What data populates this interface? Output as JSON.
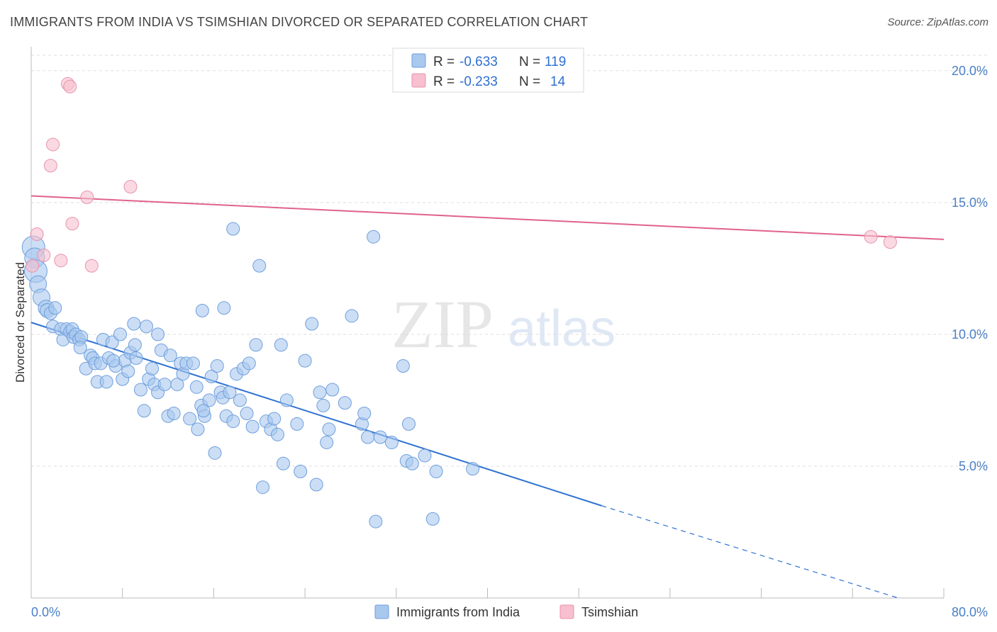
{
  "header": {
    "title": "IMMIGRANTS FROM INDIA VS TSIMSHIAN DIVORCED OR SEPARATED CORRELATION CHART",
    "source": "Source: ZipAtlas.com"
  },
  "watermark": {
    "zip": "ZIP",
    "atlas": "atlas"
  },
  "colors": {
    "india_fill": "#a9c8ee",
    "india_stroke": "#6f9fdc",
    "india_line": "#2f72d2",
    "tsim_fill": "#f7bfcf",
    "tsim_stroke": "#e893ad",
    "tsim_line": "#e0638a",
    "grid": "#dddddd",
    "tick_text": "#4a7fc6"
  },
  "legend": {
    "rows": [
      {
        "r_label": "R =",
        "r_value": "-0.633",
        "n_label": "N =",
        "n_value": "119"
      },
      {
        "r_label": "R =",
        "r_value": "-0.233",
        "n_label": "N =",
        "n_value": "14"
      }
    ]
  },
  "bottom_legend": {
    "india": "Immigrants from India",
    "tsim": "Tsimshian"
  },
  "chart_data": {
    "type": "scatter",
    "title": "IMMIGRANTS FROM INDIA VS TSIMSHIAN DIVORCED OR SEPARATED CORRELATION CHART",
    "ylabel": "Divorced or Separated",
    "xlim": [
      0,
      80
    ],
    "ylim": [
      0,
      20.8
    ],
    "x_tick_labels": [
      "0.0%",
      "80.0%"
    ],
    "y_ticks": [
      5,
      10,
      15,
      20
    ],
    "y_tick_labels": [
      "5.0%",
      "10.0%",
      "15.0%",
      "20.0%"
    ],
    "grid": true,
    "legend_position": "top-center",
    "series": [
      {
        "name": "Immigrants from India",
        "r": -0.633,
        "n": 119,
        "trend": {
          "x0": 0,
          "y0": 10.45,
          "x1": 50,
          "y1": 3.5,
          "dash_x1": 76,
          "dash_y1": 0
        },
        "points": [
          [
            0.2,
            13.3,
            16
          ],
          [
            0.3,
            12.9,
            14
          ],
          [
            0.4,
            12.4,
            16
          ],
          [
            0.6,
            11.9,
            12
          ],
          [
            0.9,
            11.4,
            12
          ],
          [
            1.3,
            11.0,
            11
          ],
          [
            1.4,
            10.9,
            10
          ],
          [
            1.7,
            10.8,
            9
          ],
          [
            2.1,
            11.0,
            9
          ],
          [
            1.9,
            10.3,
            9
          ],
          [
            2.6,
            10.2,
            9
          ],
          [
            2.8,
            9.8,
            9
          ],
          [
            3.1,
            10.2,
            9
          ],
          [
            3.4,
            10.1,
            9
          ],
          [
            3.6,
            10.2,
            9
          ],
          [
            3.7,
            9.9,
            9
          ],
          [
            3.9,
            10.0,
            9
          ],
          [
            4.2,
            9.8,
            9
          ],
          [
            4.4,
            9.9,
            9
          ],
          [
            4.3,
            9.5,
            9
          ],
          [
            4.8,
            8.7,
            9
          ],
          [
            5.2,
            9.2,
            9
          ],
          [
            5.4,
            9.1,
            9
          ],
          [
            5.6,
            8.9,
            9
          ],
          [
            5.8,
            8.2,
            9
          ],
          [
            6.1,
            8.9,
            9
          ],
          [
            6.3,
            9.8,
            9
          ],
          [
            6.6,
            8.2,
            9
          ],
          [
            6.8,
            9.1,
            9
          ],
          [
            7.1,
            9.7,
            9
          ],
          [
            7.4,
            8.8,
            9
          ],
          [
            7.8,
            10.0,
            9
          ],
          [
            8.0,
            8.3,
            9
          ],
          [
            8.2,
            9.0,
            9
          ],
          [
            8.5,
            8.6,
            9
          ],
          [
            8.7,
            9.3,
            9
          ],
          [
            9.0,
            10.4,
            9
          ],
          [
            9.2,
            9.1,
            9
          ],
          [
            9.6,
            7.9,
            9
          ],
          [
            9.9,
            7.1,
            9
          ],
          [
            10.1,
            10.3,
            9
          ],
          [
            10.3,
            8.3,
            9
          ],
          [
            10.6,
            8.7,
            9
          ],
          [
            10.8,
            8.1,
            9
          ],
          [
            11.1,
            7.8,
            9
          ],
          [
            11.4,
            9.4,
            9
          ],
          [
            11.7,
            8.1,
            9
          ],
          [
            12.0,
            6.9,
            9
          ],
          [
            12.2,
            9.2,
            9
          ],
          [
            12.5,
            7.0,
            9
          ],
          [
            12.8,
            8.1,
            9
          ],
          [
            13.1,
            8.9,
            9
          ],
          [
            13.3,
            8.5,
            9
          ],
          [
            13.6,
            8.9,
            9
          ],
          [
            13.9,
            6.8,
            9
          ],
          [
            14.2,
            8.9,
            9
          ],
          [
            14.5,
            8.0,
            9
          ],
          [
            14.6,
            6.4,
            9
          ],
          [
            14.9,
            7.3,
            9
          ],
          [
            15.2,
            6.9,
            9
          ],
          [
            15.6,
            7.5,
            9
          ],
          [
            15.1,
            7.1,
            9
          ],
          [
            15.8,
            8.4,
            9
          ],
          [
            16.1,
            5.5,
            9
          ],
          [
            16.3,
            8.8,
            9
          ],
          [
            16.6,
            7.8,
            9
          ],
          [
            16.8,
            7.6,
            9
          ],
          [
            17.1,
            6.9,
            9
          ],
          [
            17.4,
            7.8,
            9
          ],
          [
            17.7,
            6.7,
            9
          ],
          [
            18.0,
            8.5,
            9
          ],
          [
            18.3,
            7.5,
            9
          ],
          [
            18.6,
            8.7,
            9
          ],
          [
            18.9,
            7.0,
            9
          ],
          [
            19.1,
            8.9,
            9
          ],
          [
            19.4,
            6.5,
            9
          ],
          [
            19.7,
            9.6,
            9
          ],
          [
            20.0,
            12.6,
            9
          ],
          [
            20.3,
            4.2,
            9
          ],
          [
            20.6,
            6.7,
            9
          ],
          [
            21.0,
            6.4,
            9
          ],
          [
            21.3,
            6.8,
            9
          ],
          [
            21.6,
            6.2,
            9
          ],
          [
            21.9,
            9.6,
            9
          ],
          [
            22.1,
            5.1,
            9
          ],
          [
            22.4,
            7.5,
            9
          ],
          [
            23.3,
            6.6,
            9
          ],
          [
            23.6,
            4.8,
            9
          ],
          [
            24.0,
            9.0,
            9
          ],
          [
            24.6,
            10.4,
            9
          ],
          [
            25.0,
            4.3,
            9
          ],
          [
            25.3,
            7.8,
            9
          ],
          [
            25.6,
            7.3,
            9
          ],
          [
            25.9,
            5.9,
            9
          ],
          [
            26.1,
            6.4,
            9
          ],
          [
            26.4,
            7.9,
            9
          ],
          [
            27.5,
            7.4,
            9
          ],
          [
            28.1,
            10.7,
            9
          ],
          [
            29.0,
            6.6,
            9
          ],
          [
            29.2,
            7.0,
            9
          ],
          [
            29.5,
            6.1,
            9
          ],
          [
            30.0,
            13.7,
            9
          ],
          [
            30.2,
            2.9,
            9
          ],
          [
            30.6,
            6.1,
            9
          ],
          [
            31.6,
            5.9,
            9
          ],
          [
            32.6,
            8.8,
            9
          ],
          [
            32.9,
            5.2,
            9
          ],
          [
            33.1,
            6.6,
            9
          ],
          [
            33.4,
            5.1,
            9
          ],
          [
            34.5,
            5.4,
            9
          ],
          [
            35.2,
            3.0,
            9
          ],
          [
            35.5,
            4.8,
            9
          ],
          [
            38.7,
            4.9,
            9
          ],
          [
            16.9,
            11.0,
            9
          ],
          [
            17.7,
            14.0,
            9
          ],
          [
            15.0,
            10.9,
            9
          ],
          [
            11.1,
            10.0,
            9
          ],
          [
            9.1,
            9.6,
            9
          ],
          [
            7.2,
            9.0,
            9
          ]
        ]
      },
      {
        "name": "Tsimshian",
        "r": -0.233,
        "n": 14,
        "trend": {
          "x0": 0,
          "y0": 15.25,
          "x1": 80,
          "y1": 13.6
        },
        "points": [
          [
            0.1,
            12.6,
            9
          ],
          [
            0.5,
            13.8,
            9
          ],
          [
            1.1,
            13.0,
            9
          ],
          [
            1.7,
            16.4,
            9
          ],
          [
            1.9,
            17.2,
            9
          ],
          [
            2.6,
            12.8,
            9
          ],
          [
            3.2,
            19.5,
            9
          ],
          [
            3.4,
            19.4,
            9
          ],
          [
            3.6,
            14.2,
            9
          ],
          [
            4.9,
            15.2,
            9
          ],
          [
            5.3,
            12.6,
            9
          ],
          [
            8.7,
            15.6,
            9
          ],
          [
            73.6,
            13.7,
            9
          ],
          [
            75.3,
            13.5,
            9
          ]
        ]
      }
    ]
  }
}
